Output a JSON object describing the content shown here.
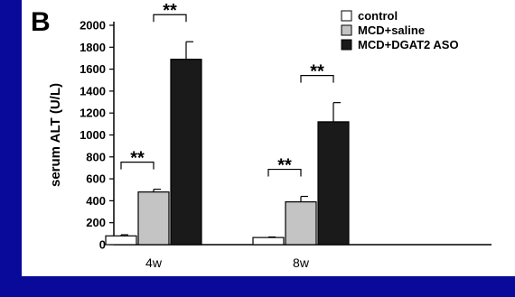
{
  "chart_data": {
    "type": "bar",
    "panel_label": "B",
    "ylabel": "serum ALT (U/L)",
    "ylim": [
      0,
      2000
    ],
    "yticks": [
      0,
      200,
      400,
      600,
      800,
      1000,
      1200,
      1400,
      1600,
      1800,
      2000
    ],
    "categories": [
      "4w",
      "8w"
    ],
    "series": [
      {
        "name": "control",
        "values": [
          80,
          65
        ],
        "errors": [
          10,
          5
        ],
        "color": "#ffffff"
      },
      {
        "name": "MCD+saline",
        "values": [
          480,
          390
        ],
        "errors": [
          25,
          50
        ],
        "color": "#c4c4c4"
      },
      {
        "name": "MCD+DGAT2 ASO",
        "values": [
          1690,
          1120
        ],
        "errors": [
          160,
          175
        ],
        "color": "#1a1a1a"
      }
    ],
    "significance": [
      {
        "category": 0,
        "from": 0,
        "to": 1,
        "label": "**"
      },
      {
        "category": 0,
        "from": 1,
        "to": 2,
        "label": "**"
      },
      {
        "category": 1,
        "from": 0,
        "to": 1,
        "label": "**"
      },
      {
        "category": 1,
        "from": 1,
        "to": 2,
        "label": "**"
      }
    ],
    "legend_position": "top-right",
    "grid": false
  },
  "colors": {
    "background": "#0a0a9a",
    "figure": "#ffffff"
  }
}
